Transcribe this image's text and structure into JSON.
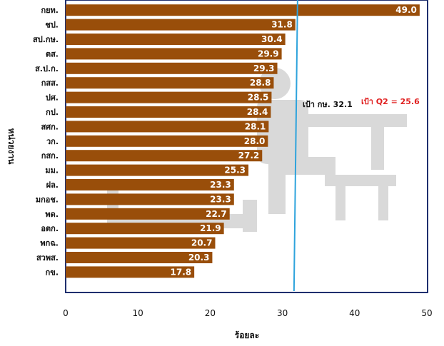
{
  "chart_data": {
    "type": "bar",
    "orientation": "horizontal",
    "categories": [
      "กยท.",
      "ชป.",
      "สป.กษ.",
      "ตส.",
      "ส.ป.ก.",
      "กสส.",
      "ปศ.",
      "กป.",
      "สศก.",
      "วก.",
      "กสก.",
      "มม.",
      "ฝล.",
      "มกอช.",
      "พด.",
      "อตก.",
      "พกฉ.",
      "สวพส.",
      "กข."
    ],
    "values": [
      49.0,
      31.8,
      30.4,
      29.9,
      29.3,
      28.8,
      28.5,
      28.4,
      28.1,
      28.0,
      27.2,
      25.3,
      23.3,
      23.3,
      22.7,
      21.9,
      20.7,
      20.3,
      17.8
    ],
    "value_labels": [
      "49.0",
      "31.8",
      "30.4",
      "29.9",
      "29.3",
      "28.8",
      "28.5",
      "28.4",
      "28.1",
      "28.0",
      "27.2",
      "25.3",
      "23.3",
      "23.3",
      "22.7",
      "21.9",
      "20.7",
      "20.3",
      "17.8"
    ],
    "xlabel": "ร้อยละ",
    "ylabel": "หน่วยงาน",
    "xlim": [
      0,
      50
    ],
    "xticks": [
      "0",
      "10",
      "20",
      "30",
      "40",
      "50"
    ],
    "grid": false,
    "bar_color": "#994e0a",
    "target_line": {
      "value": 32.1,
      "color": "#2ea3dc"
    },
    "annotations": {
      "target_label": "เป้า กษ. 32.1",
      "q2_label": "เป้า Q2  = 25.6",
      "q2_color": "#e02020"
    },
    "frame_color": "#1f2f6e"
  }
}
